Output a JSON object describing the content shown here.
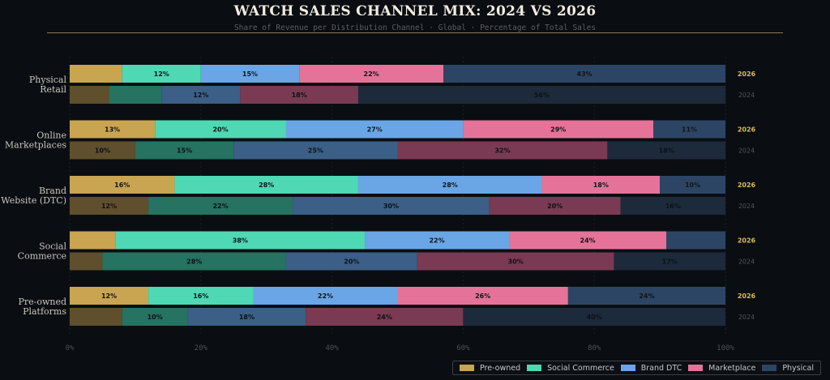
{
  "chart_data": {
    "type": "bar",
    "orientation": "horizontal",
    "stacked": true,
    "title": "WATCH SALES CHANNEL MIX: 2024 VS 2026",
    "subtitle": "Share of Revenue per Distribution Channel  ·  Global  ·  Percentage of Total Sales",
    "xlim": [
      0,
      100
    ],
    "x_ticks": [
      "0%",
      "20%",
      "40%",
      "60%",
      "80%",
      "100%"
    ],
    "legend_position": "bottom-right",
    "years": [
      "2026",
      "2024"
    ],
    "year_colors": {
      "2026": "#d9b95c",
      "2024": "#4d5560"
    },
    "series": [
      {
        "name": "Pre-owned",
        "color": "#c9a552",
        "color_2024": "#5f4f2c"
      },
      {
        "name": "Social Commerce",
        "color": "#4fd8b4",
        "color_2024": "#257360"
      },
      {
        "name": "Brand DTC",
        "color": "#6aa6e6",
        "color_2024": "#3b5f86"
      },
      {
        "name": "Marketplace",
        "color": "#e57399",
        "color_2024": "#7a3a53"
      },
      {
        "name": "Physical",
        "color": "#2d4565",
        "color_2024": "#1c2a3b"
      }
    ],
    "categories": [
      {
        "name": "Physical\nRetail",
        "2026": [
          8,
          12,
          15,
          22,
          43
        ],
        "2024": [
          6,
          8,
          12,
          18,
          56
        ]
      },
      {
        "name": "Online\nMarketplaces",
        "2026": [
          13,
          20,
          27,
          29,
          11
        ],
        "2024": [
          10,
          15,
          25,
          32,
          18
        ]
      },
      {
        "name": "Brand\nWebsite (DTC)",
        "2026": [
          16,
          28,
          28,
          18,
          10
        ],
        "2024": [
          12,
          22,
          30,
          20,
          16
        ]
      },
      {
        "name": "Social\nCommerce",
        "2026": [
          7,
          38,
          22,
          24,
          9
        ],
        "2024": [
          5,
          28,
          20,
          30,
          17
        ]
      },
      {
        "name": "Pre-owned\nPlatforms",
        "2026": [
          12,
          16,
          22,
          26,
          24
        ],
        "2024": [
          8,
          10,
          18,
          24,
          40
        ]
      }
    ]
  }
}
